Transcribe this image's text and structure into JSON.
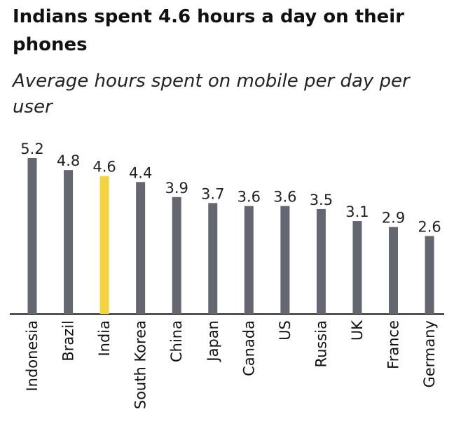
{
  "chart_data": {
    "type": "bar",
    "title": "Indians spent 4.6 hours a day on their phones",
    "subtitle": "Average hours spent on mobile per day per user",
    "xlabel": "",
    "ylabel": "",
    "ylim": [
      0,
      5.2
    ],
    "categories": [
      "Indonesia",
      "Brazil",
      "India",
      "South Korea",
      "China",
      "Japan",
      "Canada",
      "US",
      "Russia",
      "UK",
      "France",
      "Germany"
    ],
    "values": [
      5.2,
      4.8,
      4.6,
      4.4,
      3.9,
      3.7,
      3.6,
      3.6,
      3.5,
      3.1,
      2.9,
      2.6
    ],
    "labels": [
      "5.2",
      "4.8",
      "4.6",
      "4.4",
      "3.9",
      "3.7",
      "3.6",
      "3.6",
      "3.5",
      "3.1",
      "2.9",
      "2.6"
    ],
    "highlight": "India",
    "colors": {
      "bar": "#646770",
      "highlight": "#f5d33c",
      "axis": "#222222"
    },
    "grid": false
  }
}
